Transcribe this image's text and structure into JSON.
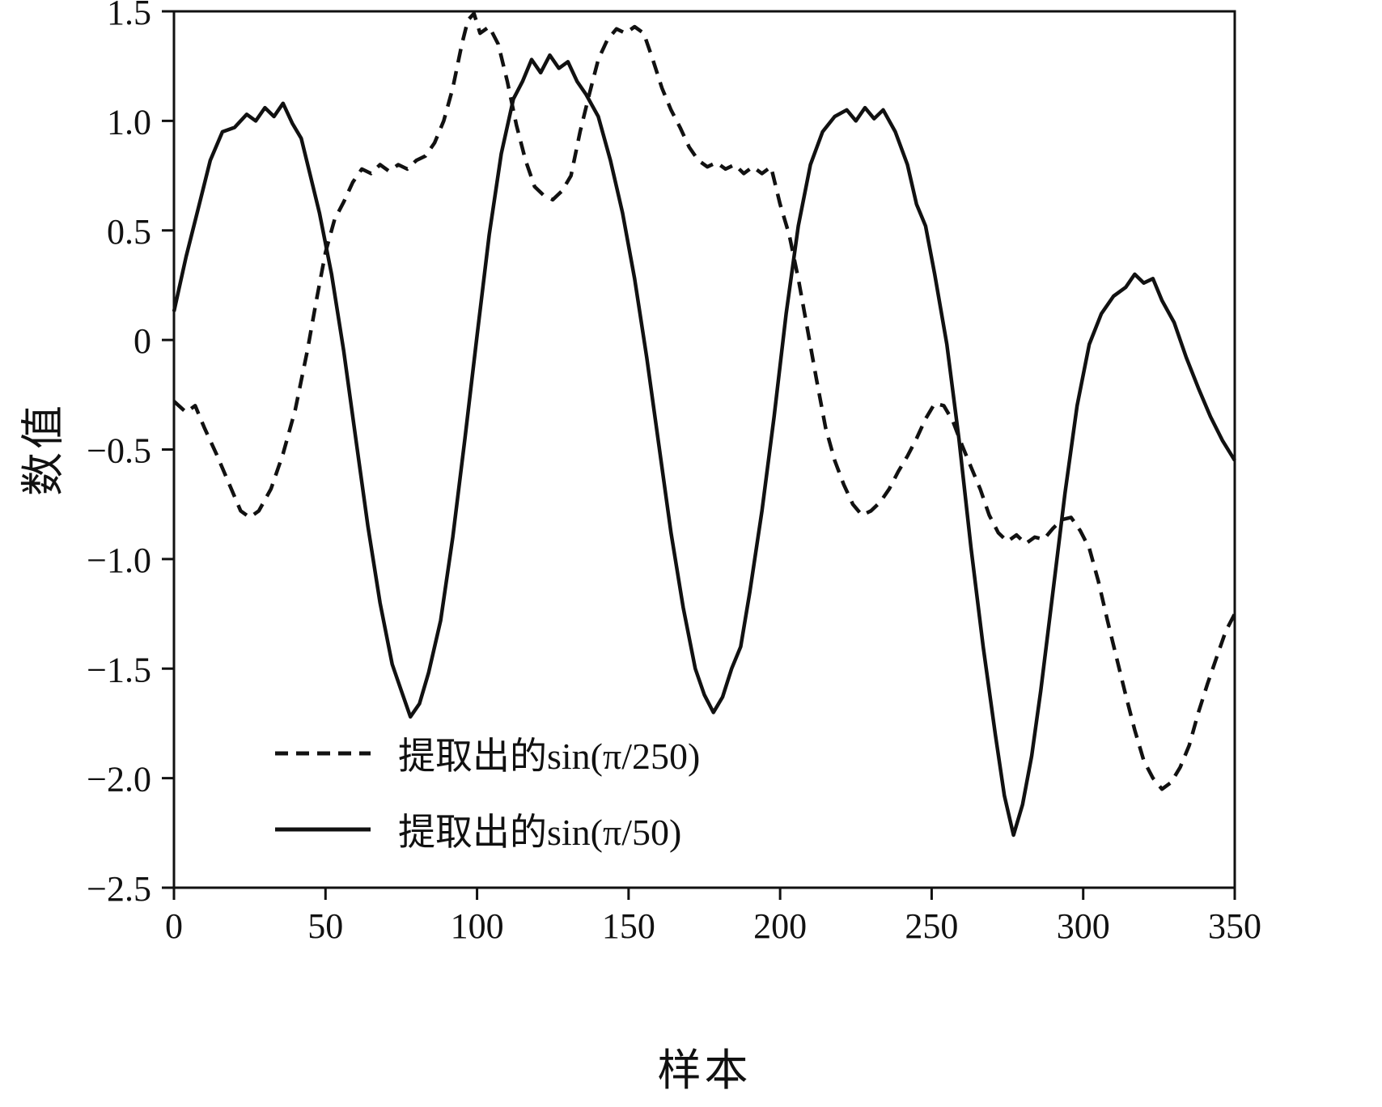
{
  "chart_data": {
    "type": "line",
    "title": "",
    "xlabel": "样本",
    "ylabel": "数值",
    "xlim": [
      0,
      350
    ],
    "ylim": [
      -2.5,
      1.5
    ],
    "grid": false,
    "frame": true,
    "legend_position": "lower-left-inside",
    "line_color": "#111111",
    "xticks": [
      0,
      50,
      100,
      150,
      200,
      250,
      300,
      350
    ],
    "xtick_labels": [
      "0",
      "50",
      "100",
      "150",
      "200",
      "250",
      "300",
      "350"
    ],
    "yticks": [
      -2.5,
      -2.0,
      -1.5,
      -1.0,
      -0.5,
      0,
      0.5,
      1.0,
      1.5
    ],
    "ytick_labels": [
      "−2.5",
      "−2.0",
      "−1.5",
      "−1.0",
      "−0.5",
      "0",
      "0.5",
      "1.0",
      "1.5"
    ],
    "legend": [
      {
        "label": "提取出的sin(π/250)",
        "style": "dashed"
      },
      {
        "label": "提取出的sin(π/50)",
        "style": "solid"
      }
    ],
    "series": [
      {
        "name": "提取出的sin(π/250)",
        "style": "dashed",
        "points": [
          [
            0,
            -0.28
          ],
          [
            4,
            -0.33
          ],
          [
            7,
            -0.3
          ],
          [
            10,
            -0.4
          ],
          [
            14,
            -0.52
          ],
          [
            18,
            -0.65
          ],
          [
            22,
            -0.78
          ],
          [
            25,
            -0.81
          ],
          [
            28,
            -0.78
          ],
          [
            32,
            -0.68
          ],
          [
            36,
            -0.52
          ],
          [
            40,
            -0.32
          ],
          [
            44,
            -0.05
          ],
          [
            47,
            0.18
          ],
          [
            50,
            0.4
          ],
          [
            53,
            0.55
          ],
          [
            56,
            0.63
          ],
          [
            59,
            0.72
          ],
          [
            62,
            0.78
          ],
          [
            65,
            0.76
          ],
          [
            68,
            0.8
          ],
          [
            71,
            0.77
          ],
          [
            74,
            0.8
          ],
          [
            77,
            0.78
          ],
          [
            80,
            0.82
          ],
          [
            83,
            0.84
          ],
          [
            86,
            0.9
          ],
          [
            89,
            1.0
          ],
          [
            92,
            1.15
          ],
          [
            95,
            1.35
          ],
          [
            97,
            1.46
          ],
          [
            99,
            1.49
          ],
          [
            101,
            1.4
          ],
          [
            104,
            1.43
          ],
          [
            107,
            1.35
          ],
          [
            110,
            1.18
          ],
          [
            113,
            0.98
          ],
          [
            116,
            0.82
          ],
          [
            119,
            0.7
          ],
          [
            122,
            0.66
          ],
          [
            125,
            0.64
          ],
          [
            128,
            0.68
          ],
          [
            131,
            0.75
          ],
          [
            134,
            0.95
          ],
          [
            137,
            1.12
          ],
          [
            140,
            1.28
          ],
          [
            143,
            1.37
          ],
          [
            146,
            1.42
          ],
          [
            149,
            1.4
          ],
          [
            152,
            1.43
          ],
          [
            155,
            1.4
          ],
          [
            158,
            1.28
          ],
          [
            161,
            1.15
          ],
          [
            164,
            1.05
          ],
          [
            167,
            0.97
          ],
          [
            170,
            0.88
          ],
          [
            173,
            0.82
          ],
          [
            176,
            0.79
          ],
          [
            179,
            0.81
          ],
          [
            182,
            0.78
          ],
          [
            185,
            0.8
          ],
          [
            188,
            0.76
          ],
          [
            191,
            0.79
          ],
          [
            194,
            0.76
          ],
          [
            197,
            0.79
          ],
          [
            200,
            0.62
          ],
          [
            203,
            0.48
          ],
          [
            206,
            0.28
          ],
          [
            209,
            0.05
          ],
          [
            212,
            -0.18
          ],
          [
            215,
            -0.4
          ],
          [
            218,
            -0.55
          ],
          [
            221,
            -0.66
          ],
          [
            224,
            -0.75
          ],
          [
            227,
            -0.8
          ],
          [
            230,
            -0.78
          ],
          [
            233,
            -0.74
          ],
          [
            236,
            -0.68
          ],
          [
            239,
            -0.6
          ],
          [
            242,
            -0.53
          ],
          [
            245,
            -0.45
          ],
          [
            248,
            -0.36
          ],
          [
            251,
            -0.29
          ],
          [
            254,
            -0.3
          ],
          [
            257,
            -0.37
          ],
          [
            260,
            -0.48
          ],
          [
            263,
            -0.58
          ],
          [
            266,
            -0.68
          ],
          [
            269,
            -0.8
          ],
          [
            272,
            -0.88
          ],
          [
            275,
            -0.92
          ],
          [
            278,
            -0.89
          ],
          [
            281,
            -0.93
          ],
          [
            284,
            -0.9
          ],
          [
            287,
            -0.91
          ],
          [
            290,
            -0.86
          ],
          [
            293,
            -0.82
          ],
          [
            296,
            -0.81
          ],
          [
            299,
            -0.87
          ],
          [
            302,
            -0.95
          ],
          [
            305,
            -1.1
          ],
          [
            308,
            -1.28
          ],
          [
            311,
            -1.45
          ],
          [
            314,
            -1.62
          ],
          [
            317,
            -1.78
          ],
          [
            320,
            -1.92
          ],
          [
            323,
            -2.0
          ],
          [
            326,
            -2.05
          ],
          [
            329,
            -2.02
          ],
          [
            332,
            -1.95
          ],
          [
            335,
            -1.85
          ],
          [
            338,
            -1.7
          ],
          [
            341,
            -1.57
          ],
          [
            344,
            -1.45
          ],
          [
            347,
            -1.33
          ],
          [
            350,
            -1.25
          ]
        ]
      },
      {
        "name": "提取出的sin(π/50)",
        "style": "solid",
        "points": [
          [
            0,
            0.13
          ],
          [
            4,
            0.38
          ],
          [
            8,
            0.6
          ],
          [
            12,
            0.82
          ],
          [
            16,
            0.95
          ],
          [
            20,
            0.97
          ],
          [
            24,
            1.03
          ],
          [
            27,
            1.0
          ],
          [
            30,
            1.06
          ],
          [
            33,
            1.02
          ],
          [
            36,
            1.08
          ],
          [
            39,
            0.99
          ],
          [
            42,
            0.92
          ],
          [
            45,
            0.75
          ],
          [
            48,
            0.58
          ],
          [
            52,
            0.3
          ],
          [
            56,
            -0.05
          ],
          [
            60,
            -0.45
          ],
          [
            64,
            -0.85
          ],
          [
            68,
            -1.2
          ],
          [
            72,
            -1.48
          ],
          [
            75,
            -1.6
          ],
          [
            78,
            -1.72
          ],
          [
            81,
            -1.66
          ],
          [
            84,
            -1.52
          ],
          [
            88,
            -1.28
          ],
          [
            92,
            -0.9
          ],
          [
            96,
            -0.45
          ],
          [
            100,
            0.02
          ],
          [
            104,
            0.48
          ],
          [
            108,
            0.85
          ],
          [
            112,
            1.1
          ],
          [
            115,
            1.18
          ],
          [
            118,
            1.28
          ],
          [
            121,
            1.22
          ],
          [
            124,
            1.3
          ],
          [
            127,
            1.24
          ],
          [
            130,
            1.27
          ],
          [
            133,
            1.18
          ],
          [
            136,
            1.12
          ],
          [
            140,
            1.02
          ],
          [
            144,
            0.82
          ],
          [
            148,
            0.58
          ],
          [
            152,
            0.28
          ],
          [
            156,
            -0.08
          ],
          [
            160,
            -0.48
          ],
          [
            164,
            -0.88
          ],
          [
            168,
            -1.22
          ],
          [
            172,
            -1.5
          ],
          [
            175,
            -1.62
          ],
          [
            178,
            -1.7
          ],
          [
            181,
            -1.63
          ],
          [
            184,
            -1.5
          ],
          [
            187,
            -1.4
          ],
          [
            190,
            -1.15
          ],
          [
            194,
            -0.78
          ],
          [
            198,
            -0.35
          ],
          [
            202,
            0.12
          ],
          [
            206,
            0.52
          ],
          [
            210,
            0.8
          ],
          [
            214,
            0.95
          ],
          [
            218,
            1.02
          ],
          [
            222,
            1.05
          ],
          [
            225,
            1.0
          ],
          [
            228,
            1.06
          ],
          [
            231,
            1.01
          ],
          [
            234,
            1.05
          ],
          [
            238,
            0.95
          ],
          [
            242,
            0.8
          ],
          [
            245,
            0.62
          ],
          [
            248,
            0.52
          ],
          [
            251,
            0.3
          ],
          [
            255,
            -0.02
          ],
          [
            259,
            -0.45
          ],
          [
            263,
            -0.95
          ],
          [
            267,
            -1.4
          ],
          [
            271,
            -1.8
          ],
          [
            274,
            -2.08
          ],
          [
            277,
            -2.26
          ],
          [
            280,
            -2.12
          ],
          [
            283,
            -1.9
          ],
          [
            286,
            -1.6
          ],
          [
            290,
            -1.15
          ],
          [
            294,
            -0.7
          ],
          [
            298,
            -0.3
          ],
          [
            302,
            -0.02
          ],
          [
            306,
            0.12
          ],
          [
            310,
            0.2
          ],
          [
            314,
            0.24
          ],
          [
            317,
            0.3
          ],
          [
            320,
            0.26
          ],
          [
            323,
            0.28
          ],
          [
            326,
            0.18
          ],
          [
            330,
            0.08
          ],
          [
            334,
            -0.08
          ],
          [
            338,
            -0.22
          ],
          [
            342,
            -0.35
          ],
          [
            346,
            -0.46
          ],
          [
            350,
            -0.55
          ]
        ]
      }
    ]
  }
}
